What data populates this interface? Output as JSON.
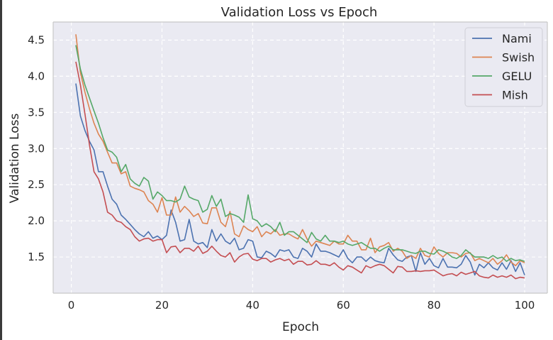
{
  "chart_data": {
    "type": "line",
    "title": "Validation Loss vs Epoch",
    "xlabel": "Epoch",
    "ylabel": "Validation Loss",
    "xlim": [
      -4,
      105
    ],
    "ylim": [
      1.0,
      4.75
    ],
    "xticks": [
      0,
      20,
      40,
      60,
      80,
      100
    ],
    "yticks": [
      1.5,
      2.0,
      2.5,
      3.0,
      3.5,
      4.0,
      4.5
    ],
    "grid": true,
    "legend_position": "top-right",
    "x": [
      1,
      2,
      3,
      4,
      5,
      6,
      7,
      8,
      9,
      10,
      11,
      12,
      13,
      14,
      15,
      16,
      17,
      18,
      19,
      20,
      21,
      22,
      23,
      24,
      25,
      26,
      27,
      28,
      29,
      30,
      31,
      32,
      33,
      34,
      35,
      36,
      37,
      38,
      39,
      40,
      41,
      42,
      43,
      44,
      45,
      46,
      47,
      48,
      49,
      50,
      51,
      52,
      53,
      54,
      55,
      56,
      57,
      58,
      59,
      60,
      61,
      62,
      63,
      64,
      65,
      66,
      67,
      68,
      69,
      70,
      71,
      72,
      73,
      74,
      75,
      76,
      77,
      78,
      79,
      80,
      81,
      82,
      83,
      84,
      85,
      86,
      87,
      88,
      89,
      90,
      91,
      92,
      93,
      94,
      95,
      96,
      97,
      98,
      99,
      100
    ],
    "series": [
      {
        "name": "Nami",
        "color": "#4c72b0",
        "values": [
          3.9,
          3.45,
          3.25,
          3.1,
          2.98,
          2.68,
          2.68,
          2.48,
          2.3,
          2.23,
          2.08,
          2.02,
          1.95,
          1.88,
          1.82,
          1.78,
          1.85,
          1.76,
          1.79,
          1.74,
          1.8,
          2.15,
          1.98,
          1.72,
          1.74,
          2.02,
          1.72,
          1.68,
          1.7,
          1.63,
          1.88,
          1.72,
          1.82,
          1.72,
          1.68,
          1.76,
          1.6,
          1.62,
          1.74,
          1.72,
          1.5,
          1.49,
          1.58,
          1.55,
          1.5,
          1.6,
          1.58,
          1.6,
          1.5,
          1.48,
          1.62,
          1.58,
          1.5,
          1.68,
          1.58,
          1.58,
          1.56,
          1.53,
          1.5,
          1.6,
          1.48,
          1.42,
          1.5,
          1.5,
          1.44,
          1.5,
          1.45,
          1.43,
          1.42,
          1.62,
          1.53,
          1.46,
          1.44,
          1.5,
          1.52,
          1.3,
          1.56,
          1.4,
          1.48,
          1.38,
          1.35,
          1.48,
          1.36,
          1.36,
          1.35,
          1.4,
          1.52,
          1.43,
          1.25,
          1.4,
          1.35,
          1.42,
          1.35,
          1.32,
          1.42,
          1.33,
          1.45,
          1.3,
          1.42,
          1.25
        ]
      },
      {
        "name": "Swish",
        "color": "#dd8452",
        "values": [
          4.58,
          4.05,
          3.78,
          3.55,
          3.35,
          3.2,
          3.1,
          2.95,
          2.8,
          2.8,
          2.65,
          2.68,
          2.48,
          2.45,
          2.43,
          2.4,
          2.28,
          2.23,
          2.12,
          2.32,
          2.08,
          2.08,
          2.33,
          2.12,
          2.2,
          2.14,
          2.06,
          2.1,
          1.97,
          1.96,
          2.18,
          2.18,
          1.98,
          1.92,
          2.13,
          1.82,
          1.78,
          1.93,
          1.88,
          1.85,
          1.92,
          1.78,
          1.85,
          1.82,
          1.88,
          1.8,
          1.82,
          1.82,
          1.78,
          1.75,
          1.88,
          1.75,
          1.65,
          1.72,
          1.7,
          1.68,
          1.66,
          1.72,
          1.68,
          1.68,
          1.8,
          1.72,
          1.72,
          1.6,
          1.6,
          1.76,
          1.56,
          1.64,
          1.66,
          1.7,
          1.58,
          1.62,
          1.58,
          1.48,
          1.52,
          1.48,
          1.62,
          1.52,
          1.5,
          1.64,
          1.55,
          1.5,
          1.56,
          1.56,
          1.55,
          1.5,
          1.55,
          1.56,
          1.45,
          1.48,
          1.45,
          1.42,
          1.48,
          1.4,
          1.45,
          1.53,
          1.43,
          1.38,
          1.45,
          1.42
        ]
      },
      {
        "name": "GELU",
        "color": "#55a868",
        "values": [
          4.43,
          4.1,
          3.88,
          3.7,
          3.52,
          3.35,
          3.15,
          2.98,
          2.95,
          2.88,
          2.68,
          2.78,
          2.58,
          2.52,
          2.48,
          2.6,
          2.55,
          2.3,
          2.4,
          2.35,
          2.28,
          2.28,
          2.26,
          2.3,
          2.48,
          2.33,
          2.3,
          2.28,
          2.12,
          2.16,
          2.35,
          2.2,
          2.3,
          2.06,
          2.1,
          2.08,
          2.05,
          1.98,
          2.36,
          2.03,
          2.0,
          1.92,
          1.96,
          1.92,
          1.85,
          1.98,
          1.8,
          1.85,
          1.85,
          1.8,
          1.75,
          1.7,
          1.84,
          1.75,
          1.72,
          1.8,
          1.72,
          1.72,
          1.7,
          1.72,
          1.68,
          1.66,
          1.68,
          1.7,
          1.66,
          1.62,
          1.62,
          1.58,
          1.62,
          1.65,
          1.6,
          1.6,
          1.6,
          1.58,
          1.56,
          1.55,
          1.58,
          1.58,
          1.55,
          1.54,
          1.6,
          1.58,
          1.55,
          1.5,
          1.48,
          1.52,
          1.6,
          1.55,
          1.5,
          1.5,
          1.5,
          1.48,
          1.52,
          1.48,
          1.5,
          1.44,
          1.48,
          1.45,
          1.46,
          1.44
        ]
      },
      {
        "name": "Mish",
        "color": "#c44e52",
        "values": [
          4.2,
          3.88,
          3.48,
          3.05,
          2.68,
          2.58,
          2.4,
          2.12,
          2.08,
          2.0,
          1.98,
          1.92,
          1.88,
          1.78,
          1.72,
          1.75,
          1.76,
          1.72,
          1.74,
          1.74,
          1.56,
          1.64,
          1.65,
          1.56,
          1.62,
          1.62,
          1.58,
          1.65,
          1.55,
          1.58,
          1.65,
          1.58,
          1.52,
          1.5,
          1.56,
          1.43,
          1.5,
          1.54,
          1.55,
          1.47,
          1.45,
          1.48,
          1.48,
          1.43,
          1.46,
          1.48,
          1.45,
          1.47,
          1.4,
          1.44,
          1.44,
          1.39,
          1.4,
          1.45,
          1.4,
          1.4,
          1.38,
          1.42,
          1.36,
          1.32,
          1.38,
          1.36,
          1.32,
          1.28,
          1.38,
          1.35,
          1.38,
          1.4,
          1.38,
          1.33,
          1.28,
          1.37,
          1.36,
          1.3,
          1.3,
          1.31,
          1.3,
          1.31,
          1.31,
          1.32,
          1.28,
          1.24,
          1.26,
          1.27,
          1.24,
          1.29,
          1.26,
          1.28,
          1.3,
          1.24,
          1.22,
          1.21,
          1.25,
          1.22,
          1.24,
          1.22,
          1.25,
          1.2,
          1.22,
          1.21
        ]
      }
    ]
  }
}
